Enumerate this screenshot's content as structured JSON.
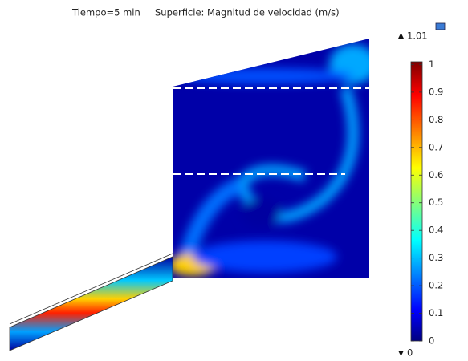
{
  "chart_data": {
    "type": "surface",
    "title": "Tiempo=5 min",
    "subtitle": "Superficie: Magnitud de velocidad (m/s)",
    "colorbar": {
      "min": 0,
      "max": 1.01,
      "ticks": [
        0,
        0.1,
        0.2,
        0.3,
        0.4,
        0.5,
        0.6,
        0.7,
        0.8,
        0.9,
        1
      ]
    }
  }
}
